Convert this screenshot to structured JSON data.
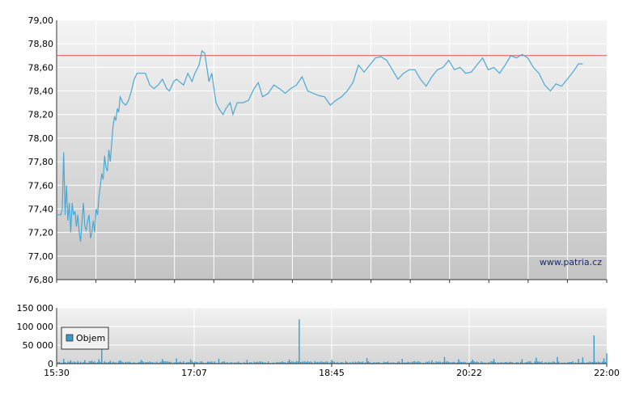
{
  "chart_data": [
    {
      "type": "line",
      "title": "",
      "x_tick_labels": [
        "15:30",
        "17:07",
        "18:45",
        "20:22",
        "22:00"
      ],
      "y_tick_labels": [
        "76,80",
        "77,00",
        "77,20",
        "77,40",
        "77,60",
        "77,80",
        "78,00",
        "78,20",
        "78,40",
        "78,60",
        "78,80",
        "79,00"
      ],
      "ylim": [
        76.8,
        79.0
      ],
      "xlim_minutes": [
        930,
        1320
      ],
      "reference_line": {
        "value": 78.7,
        "color": "#e05050"
      },
      "series": [
        {
          "color": "#4aa8d4",
          "x_time_minutes": [
            930,
            933,
            934,
            935,
            936,
            937,
            938,
            939,
            940,
            941,
            942,
            943,
            944,
            945,
            946,
            947,
            948,
            949,
            950,
            951,
            952,
            953,
            954,
            955,
            956,
            957,
            958,
            959,
            960,
            961,
            962,
            963,
            964,
            965,
            966,
            967,
            968,
            969,
            970,
            971,
            972,
            973,
            974,
            975,
            977,
            979,
            981,
            983,
            985,
            987,
            990,
            993,
            996,
            999,
            1002,
            1005,
            1008,
            1010,
            1013,
            1015,
            1017,
            1020,
            1023,
            1026,
            1028,
            1031,
            1033,
            1035,
            1038,
            1040,
            1043,
            1045,
            1048,
            1050,
            1053,
            1055,
            1058,
            1062,
            1066,
            1070,
            1073,
            1076,
            1080,
            1084,
            1088,
            1092,
            1096,
            1100,
            1104,
            1108,
            1112,
            1116,
            1120,
            1124,
            1128,
            1132,
            1136,
            1140,
            1144,
            1148,
            1152,
            1156,
            1160,
            1164,
            1168,
            1172,
            1176,
            1180,
            1184,
            1188,
            1192,
            1196,
            1200,
            1204,
            1208,
            1212,
            1216,
            1220,
            1224,
            1228,
            1232,
            1236,
            1240,
            1244,
            1248,
            1252,
            1256,
            1260,
            1264,
            1268,
            1272,
            1276,
            1280,
            1284,
            1288,
            1292,
            1296,
            1300,
            1303,
            1306,
            1309,
            1312,
            1315,
            1318,
            1320
          ],
          "y": [
            77.35,
            77.35,
            77.4,
            77.88,
            77.35,
            77.6,
            77.3,
            77.45,
            77.2,
            77.45,
            77.35,
            77.38,
            77.25,
            77.35,
            77.2,
            77.12,
            77.3,
            77.45,
            77.25,
            77.22,
            77.3,
            77.35,
            77.15,
            77.2,
            77.3,
            77.2,
            77.4,
            77.35,
            77.5,
            77.6,
            77.7,
            77.65,
            77.85,
            77.75,
            77.72,
            77.9,
            77.8,
            77.95,
            78.1,
            78.18,
            78.15,
            78.25,
            78.22,
            78.35,
            78.3,
            78.28,
            78.32,
            78.4,
            78.5,
            78.55,
            78.55,
            78.55,
            78.45,
            78.42,
            78.45,
            78.5,
            78.42,
            78.4,
            78.48,
            78.5,
            78.48,
            78.45,
            78.55,
            78.48,
            78.55,
            78.62,
            78.74,
            78.72,
            78.48,
            78.55,
            78.3,
            78.25,
            78.2,
            78.25,
            78.3,
            78.2,
            78.3,
            78.3,
            78.32,
            78.42,
            78.47,
            78.35,
            78.38,
            78.45,
            78.42,
            78.38,
            78.42,
            78.45,
            78.52,
            78.4,
            78.38,
            78.36,
            78.35,
            78.28,
            78.32,
            78.35,
            78.4,
            78.47,
            78.62,
            78.56,
            78.62,
            78.68,
            78.69,
            78.66,
            78.58,
            78.5,
            78.55,
            78.58,
            78.58,
            78.5,
            78.44,
            78.52,
            78.58,
            78.6,
            78.66,
            78.58,
            78.6,
            78.55,
            78.56,
            78.62,
            78.68,
            78.58,
            78.6,
            78.55,
            78.62,
            78.7,
            78.68,
            78.71,
            78.68,
            78.6,
            78.55,
            78.45,
            78.4,
            78.46,
            78.44,
            78.5,
            78.56,
            78.63,
            78.63
          ]
        }
      ]
    },
    {
      "type": "bar",
      "title": "",
      "x_tick_labels": [
        "15:30",
        "17:07",
        "18:45",
        "20:22",
        "22:00"
      ],
      "y_tick_labels": [
        "0",
        "50 000",
        "100 000",
        "150 000"
      ],
      "ylim": [
        0,
        150000
      ],
      "xlim_minutes": [
        930,
        1320
      ],
      "legend": {
        "label": "Objem",
        "position": "top-left"
      },
      "series": [
        {
          "name": "Objem",
          "color": "#3a9ac8",
          "x_time_minutes": [
            935,
            940,
            945,
            950,
            955,
            960,
            962,
            968,
            975,
            990,
            1005,
            1015,
            1025,
            1045,
            1065,
            1095,
            1102,
            1125,
            1150,
            1175,
            1196,
            1205,
            1215,
            1225,
            1240,
            1260,
            1270,
            1285,
            1300,
            1303,
            1311,
            1318,
            1320
          ],
          "values": [
            13000,
            9000,
            7000,
            10000,
            8000,
            12000,
            68000,
            8000,
            9000,
            10000,
            12000,
            14000,
            12000,
            13000,
            10000,
            11000,
            119000,
            10000,
            15000,
            13000,
            9000,
            18000,
            12000,
            11000,
            13000,
            12000,
            16000,
            18000,
            13000,
            17000,
            76000,
            14000,
            28000
          ]
        }
      ],
      "baseline_noise_max": 7000
    }
  ],
  "watermark": "www.patria.cz"
}
